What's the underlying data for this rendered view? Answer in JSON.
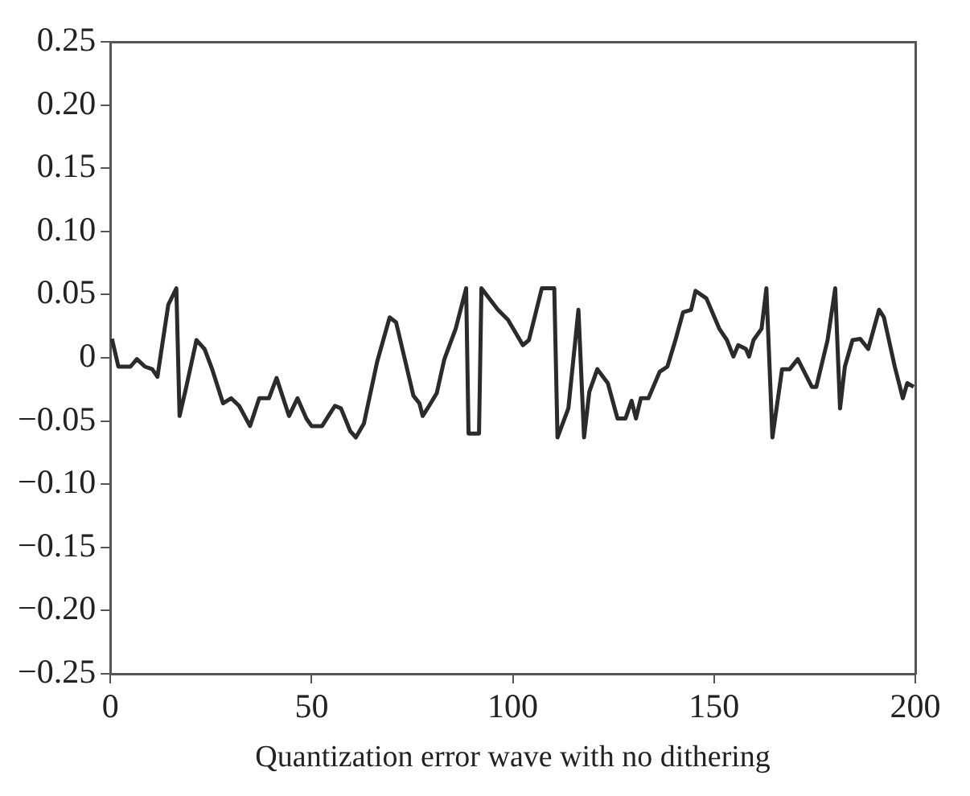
{
  "chart_data": {
    "type": "line",
    "xlabel": "Quantization error wave with no dithering",
    "xlim": [
      0,
      200
    ],
    "xticks": [
      0,
      50,
      100,
      150,
      200
    ],
    "ylim": [
      -0.25,
      0.25
    ],
    "yticks": [
      {
        "value": -0.25,
        "label": "−0.25"
      },
      {
        "value": -0.2,
        "label": "−0.20"
      },
      {
        "value": -0.15,
        "label": "−0.15"
      },
      {
        "value": -0.1,
        "label": "−0.10"
      },
      {
        "value": -0.05,
        "label": "−0.05"
      },
      {
        "value": 0,
        "label": "0"
      },
      {
        "value": 0.05,
        "label": "0.05"
      },
      {
        "value": 0.1,
        "label": "0.10"
      },
      {
        "value": 0.15,
        "label": "0.15"
      },
      {
        "value": 0.2,
        "label": "0.20"
      },
      {
        "value": 0.25,
        "label": "0.25"
      }
    ],
    "grid": false,
    "marker": "none",
    "line_style": "solid",
    "series": [
      {
        "color": "#2b2b2b",
        "x": [
          0.4,
          2,
          5,
          6.6,
          8.6,
          10.4,
          11.7,
          14.4,
          16.4,
          17.2,
          18.8,
          21.4,
          23.4,
          25.3,
          28,
          30,
          32,
          34.7,
          37,
          39.4,
          41.3,
          44.4,
          46.5,
          48.7,
          50,
          52.6,
          53.8,
          55.8,
          57.3,
          59.6,
          61,
          63,
          66.3,
          69.4,
          71,
          75.3,
          76.8,
          77.6,
          79.2,
          81.1,
          83,
          85.8,
          88.4,
          89,
          91.6,
          92.2,
          96.3,
          98.8,
          102.5,
          104,
          107.2,
          110.3,
          111.1,
          113.8,
          116.3,
          117.7,
          119,
          121,
          123.6,
          126,
          128,
          129.5,
          130.6,
          131.8,
          133.7,
          136.5,
          138.4,
          140.4,
          142.3,
          144.3,
          145.4,
          148.1,
          151.3,
          153.2,
          154.8,
          156,
          157.9,
          158.7,
          159.8,
          161.8,
          163,
          164.5,
          166.9,
          168.8,
          170.8,
          174.3,
          175.4,
          178.2,
          180.1,
          181.3,
          182.5,
          184.4,
          186.3,
          188.3,
          191,
          192.2,
          194.9,
          196.9,
          198,
          199.6
        ],
        "values": [
          0.015,
          -0.007,
          -0.007,
          -0.001,
          -0.007,
          -0.009,
          -0.015,
          0.042,
          0.055,
          -0.046,
          -0.024,
          0.014,
          0.007,
          -0.009,
          -0.036,
          -0.032,
          -0.038,
          -0.054,
          -0.032,
          -0.032,
          -0.016,
          -0.046,
          -0.032,
          -0.048,
          -0.054,
          -0.054,
          -0.048,
          -0.038,
          -0.04,
          -0.058,
          -0.063,
          -0.052,
          -0.003,
          0.032,
          0.028,
          -0.03,
          -0.036,
          -0.046,
          -0.038,
          -0.028,
          -0.001,
          0.023,
          0.055,
          -0.06,
          -0.06,
          0.055,
          0.038,
          0.03,
          0.01,
          0.014,
          0.055,
          0.055,
          -0.063,
          -0.04,
          0.038,
          -0.063,
          -0.027,
          -0.009,
          -0.02,
          -0.048,
          -0.048,
          -0.034,
          -0.048,
          -0.032,
          -0.032,
          -0.011,
          -0.007,
          0.014,
          0.036,
          0.038,
          0.053,
          0.047,
          0.023,
          0.014,
          0.001,
          0.01,
          0.007,
          0.001,
          0.014,
          0.023,
          0.055,
          -0.063,
          -0.009,
          -0.009,
          -0.001,
          -0.023,
          -0.023,
          0.014,
          0.055,
          -0.04,
          -0.007,
          0.014,
          0.015,
          0.007,
          0.038,
          0.032,
          -0.007,
          -0.032,
          -0.02,
          -0.023
        ]
      }
    ]
  }
}
